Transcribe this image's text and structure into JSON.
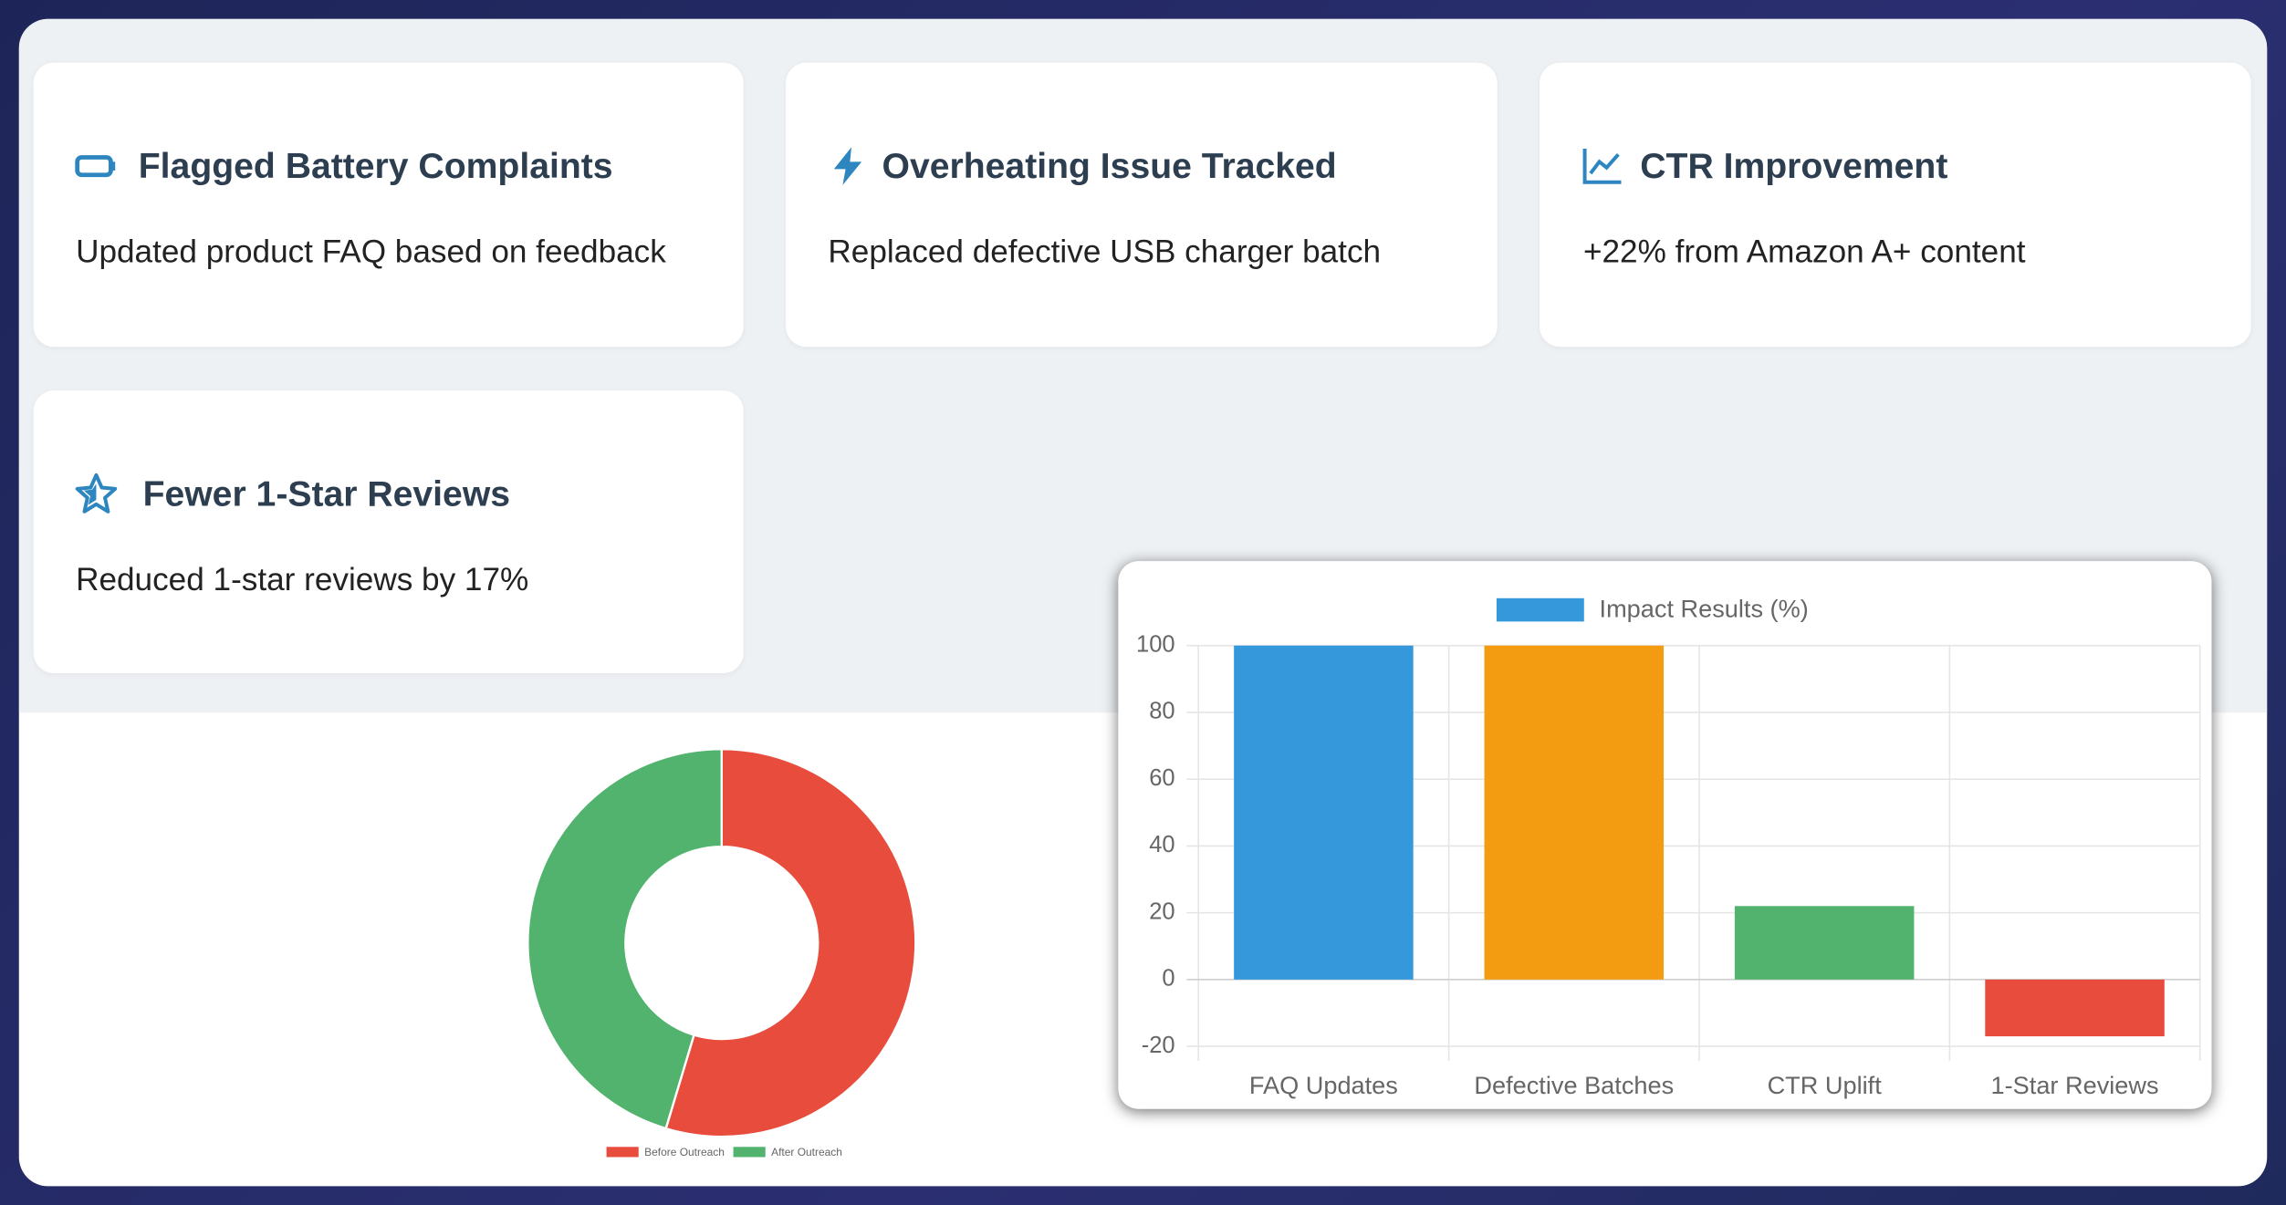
{
  "cards": [
    {
      "title": "Flagged Battery Complaints",
      "text": "Updated product FAQ based on feedback"
    },
    {
      "title": "Overheating Issue Tracked",
      "text": "Replaced defective USB charger batch"
    },
    {
      "title": "CTR Improvement",
      "text": "+22% from Amazon A+ content"
    },
    {
      "title": "Fewer 1-Star Reviews",
      "text": "Reduced 1-star reviews by 17%"
    }
  ],
  "chart_data": [
    {
      "type": "bar",
      "categories": [
        "FAQ Updates",
        "Defective Batches",
        "CTR Uplift",
        "1-Star Reviews"
      ],
      "series": [
        {
          "name": "Impact Results (%)",
          "color": "#3498db",
          "values": [
            100,
            100,
            22,
            -17
          ],
          "colors": [
            "#3498db",
            "#f39c12",
            "#52b36e",
            "#e74c3c"
          ]
        }
      ],
      "ylim": [
        -20,
        100
      ],
      "yticks": [
        -20,
        0,
        20,
        40,
        60,
        80,
        100
      ],
      "grid": true
    },
    {
      "type": "doughnut",
      "categories": [
        "Before Outreach",
        "After Outreach"
      ],
      "values": [
        100,
        83
      ],
      "colors": [
        "#e74c3c",
        "#52b36e"
      ]
    }
  ]
}
